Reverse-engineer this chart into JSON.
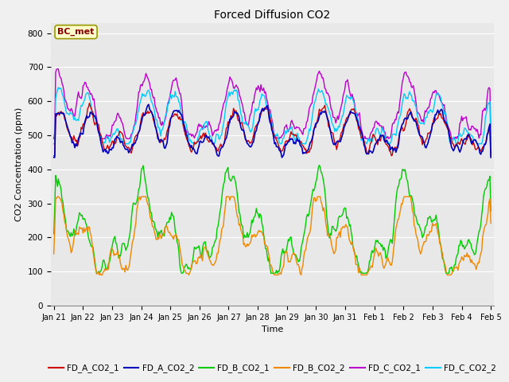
{
  "title": "Forced Diffusion CO2",
  "xlabel": "Time",
  "ylabel": "CO2 Concentration (ppm)",
  "ylim": [
    0,
    830
  ],
  "yticks": [
    0,
    100,
    200,
    300,
    400,
    500,
    600,
    700,
    800
  ],
  "annotation": "BC_met",
  "plot_bg_color": "#e8e8e8",
  "fig_bg_color": "#f0f0f0",
  "series_colors": {
    "FD_A_CO2_1": "#cc0000",
    "FD_A_CO2_2": "#0000bb",
    "FD_B_CO2_1": "#00cc00",
    "FD_B_CO2_2": "#ee8800",
    "FD_C_CO2_1": "#bb00cc",
    "FD_C_CO2_2": "#00ccff"
  },
  "xtick_labels": [
    "Jan 21",
    "Jan 22",
    "Jan 23",
    "Jan 24",
    "Jan 25",
    "Jan 26",
    "Jan 27",
    "Jan 28",
    "Jan 29",
    "Jan 30",
    "Jan 31",
    "Feb 1",
    "Feb 2",
    "Feb 3",
    "Feb 4",
    "Feb 5"
  ],
  "n_points": 480,
  "figsize": [
    6.4,
    4.8
  ],
  "dpi": 100
}
